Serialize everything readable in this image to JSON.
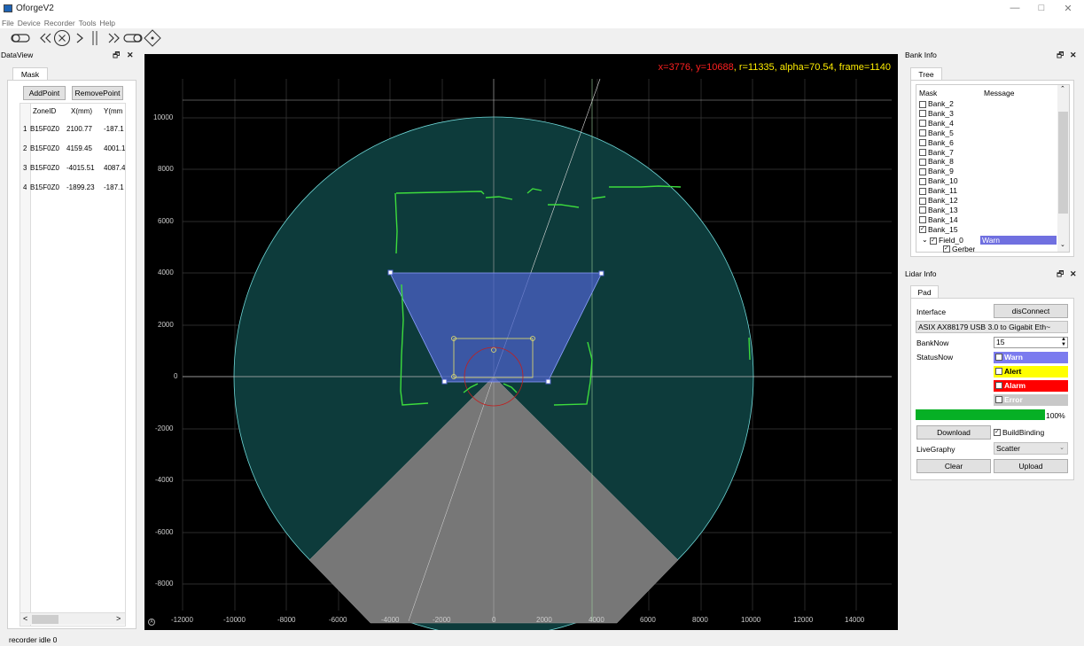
{
  "window": {
    "title": "OforgeV2",
    "minimize": "—",
    "maximize": "□",
    "close": "✕"
  },
  "menu": [
    "File",
    "Device",
    "Recorder",
    "Tools",
    "Help"
  ],
  "toolbar": [
    "toggle-left-icon",
    "rewind-icon",
    "stop-icon",
    "play-icon",
    "pause-icon",
    "fast-forward-icon",
    "toggle-right-icon",
    "diamond-crosshair-icon"
  ],
  "dataview": {
    "title": "DataView",
    "tab": "Mask",
    "add_point": "AddPoint",
    "remove_point": "RemovePoint",
    "columns": [
      "ZoneID",
      "X(mm)",
      "Y(mm"
    ],
    "rows": [
      {
        "index": "1",
        "zone": "B15F0Z0",
        "x": "2100.77",
        "y": "-187.1"
      },
      {
        "index": "2",
        "zone": "B15F0Z0",
        "x": "4159.45",
        "y": "4001.1"
      },
      {
        "index": "3",
        "zone": "B15F0Z0",
        "x": "-4015.51",
        "y": "4087.4"
      },
      {
        "index": "4",
        "zone": "B15F0Z0",
        "x": "-1899.23",
        "y": "-187.1"
      }
    ],
    "scroll_left": "<",
    "scroll_right": ">"
  },
  "plot": {
    "readout": {
      "x": "x=3776",
      "y": "y=10688",
      "r": "r=11335",
      "alpha": "alpha=70.54",
      "frame": "frame=1140"
    },
    "y_ticks": [
      "10000",
      "8000",
      "6000",
      "4000",
      "2000",
      "0",
      "-2000",
      "-4000",
      "-6000",
      "-8000"
    ],
    "x_ticks": [
      "-12000",
      "-10000",
      "-8000",
      "-6000",
      "-4000",
      "-2000",
      "0",
      "2000",
      "4000",
      "6000",
      "8000",
      "10000",
      "12000",
      "14000"
    ],
    "corner_mark": "A",
    "range_radius_mm": 10000,
    "warn_zone_mm": [
      [
        2100.77,
        -187.1
      ],
      [
        4159.45,
        4001.1
      ],
      [
        -4015.51,
        4087.4
      ],
      [
        -1899.23,
        -187.1
      ]
    ]
  },
  "bankinfo": {
    "title": "Bank Info",
    "tab": "Tree",
    "col_mask": "Mask",
    "col_message": "Message",
    "banks": [
      {
        "label": "Bank_2",
        "checked": false
      },
      {
        "label": "Bank_3",
        "checked": false
      },
      {
        "label": "Bank_4",
        "checked": false
      },
      {
        "label": "Bank_5",
        "checked": false
      },
      {
        "label": "Bank_6",
        "checked": false
      },
      {
        "label": "Bank_7",
        "checked": false
      },
      {
        "label": "Bank_8",
        "checked": false
      },
      {
        "label": "Bank_9",
        "checked": false
      },
      {
        "label": "Bank_10",
        "checked": false
      },
      {
        "label": "Bank_11",
        "checked": false
      },
      {
        "label": "Bank_12",
        "checked": false
      },
      {
        "label": "Bank_13",
        "checked": false
      },
      {
        "label": "Bank_14",
        "checked": false
      },
      {
        "label": "Bank_15",
        "checked": true
      }
    ],
    "field": "Field_0",
    "field_message": "Warn",
    "child": "Gerber"
  },
  "lidar": {
    "title": "Lidar Info",
    "tab": "Pad",
    "interface_label": "Interface",
    "disconnect": "disConnect",
    "adapter": "ASIX AX88179 USB 3.0 to Gigabit Eth~",
    "banknow_label": "BankNow",
    "banknow_value": "15",
    "statusnow_label": "StatusNow",
    "status_warn": "Warn",
    "status_alert": "Alert",
    "status_alarm": "Alarm",
    "status_error": "Error",
    "progress_percent": 100,
    "progress_text": "100%",
    "download": "Download",
    "buildbinding": "BuildBinding",
    "livegraphy_label": "LiveGraphy",
    "livegraphy_value": "Scatter",
    "clear": "Clear",
    "upload": "Upload"
  },
  "statusbar": {
    "text": "recorder idle  0"
  },
  "colors": {
    "warn": "#7b7bef",
    "alert": "#ffff00",
    "alarm": "#ff0000",
    "error": "#c8c8c8",
    "progress": "#06b025",
    "readout_red": "#ff2020",
    "readout_yellow": "#ffee00",
    "scan_green": "#3ddc3d",
    "field_fill": "#0d3b3b"
  }
}
